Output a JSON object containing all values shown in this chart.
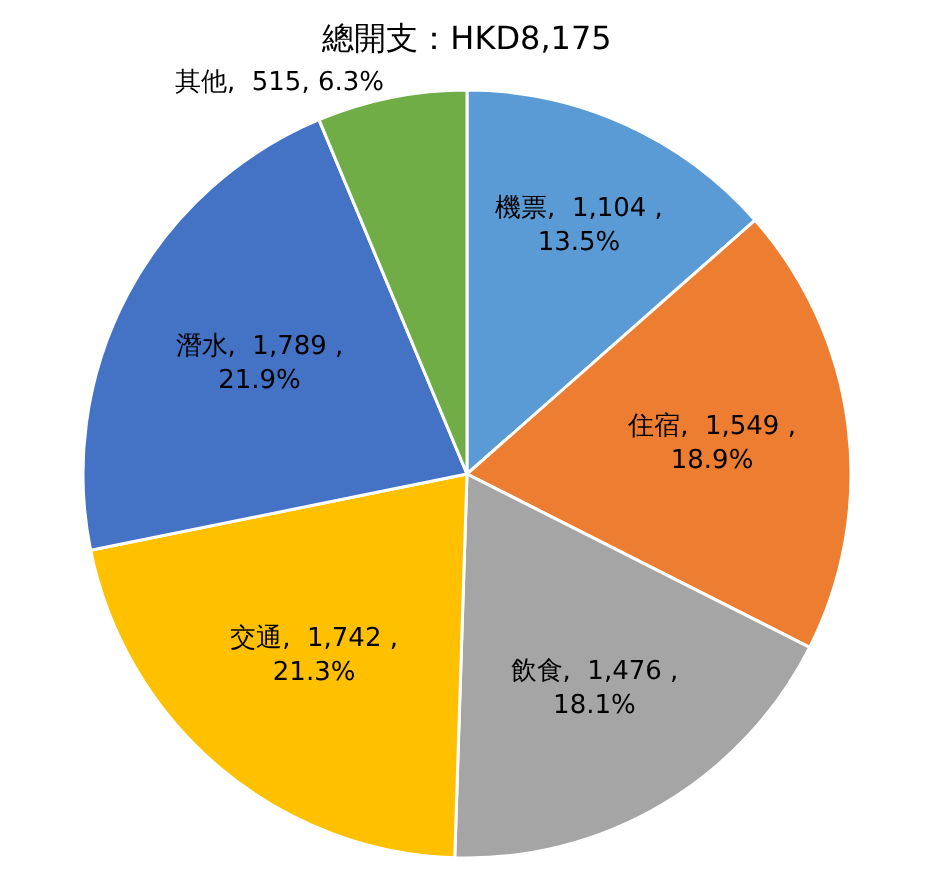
{
  "chart_data": {
    "type": "pie",
    "title": "總開支：HKD8,175",
    "categories": [
      "機票",
      "住宿",
      "飲食",
      "交通",
      "潛水",
      "其他"
    ],
    "values": [
      1104,
      1549,
      1476,
      1742,
      1789,
      515
    ],
    "value_labels": [
      "1,104 ,\n13.5%",
      "1,549 ,\n18.9%",
      "1,476 ,\n18.1%",
      "1,742 ,\n21.3%",
      "1,789 ,\n21.9%",
      "515, 6.3%"
    ],
    "colors": [
      "#5b9bd5",
      "#ed7d31",
      "#a5a5a5",
      "#ffc000",
      "#4472c4",
      "#70ad47"
    ],
    "legend": false
  }
}
